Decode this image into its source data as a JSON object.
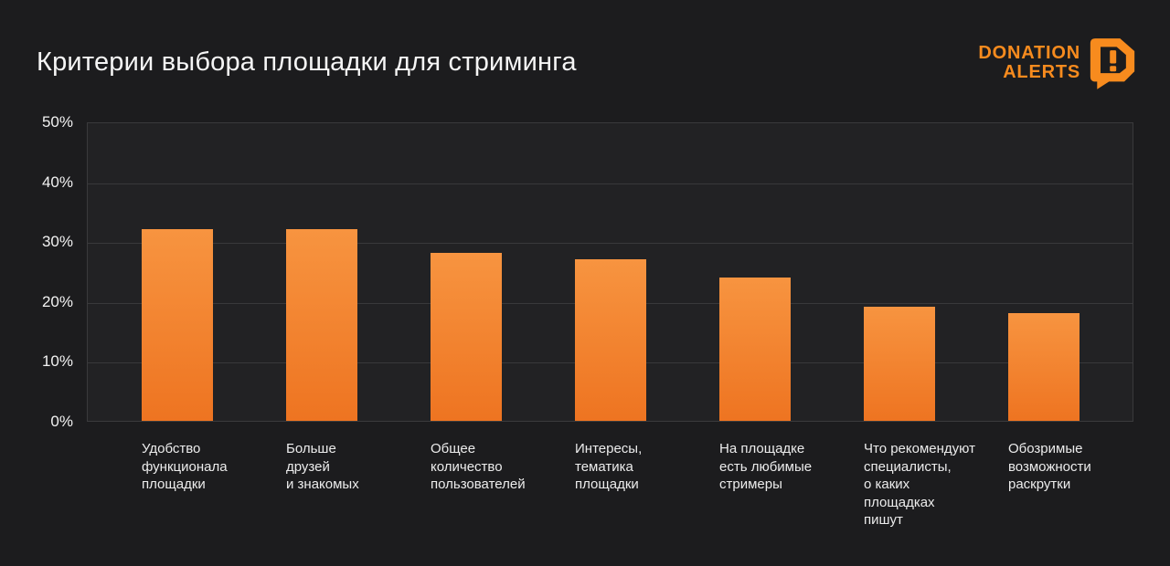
{
  "header": {
    "title": "Критерии выбора площадки для стриминга",
    "logo": {
      "line1": "DONATION",
      "line2": "ALERTS"
    }
  },
  "chart_data": {
    "type": "bar",
    "title": "Критерии выбора площадки для стриминга",
    "categories": [
      "Удобство\nфункционала\nплощадки",
      "Больше\nдрузей\nи знакомых",
      "Общее\nколичество\nпользователей",
      "Интересы,\nтематика\nплощадки",
      "На площадке\nесть любимые\nстримеры",
      "Что рекомендуют\nспециалисты,\nо каких\nплощадках\nпишут",
      "Обозримые\nвозможности\nраскрутки"
    ],
    "values": [
      32,
      32,
      28,
      27,
      24,
      19,
      18
    ],
    "xlabel": "",
    "ylabel": "",
    "ylim": [
      0,
      50
    ],
    "yticks": [
      0,
      10,
      20,
      30,
      40,
      50
    ],
    "ytick_suffix": "%",
    "grid": true,
    "legend": false,
    "colors": {
      "background": "#1c1c1e",
      "plot_background": "#222224",
      "grid_line": "#39393b",
      "text": "#f2f2f2",
      "bar_gradient_top": "#f79440",
      "bar_gradient_bottom": "#ee7421",
      "accent_orange": "#f78b1e"
    }
  }
}
